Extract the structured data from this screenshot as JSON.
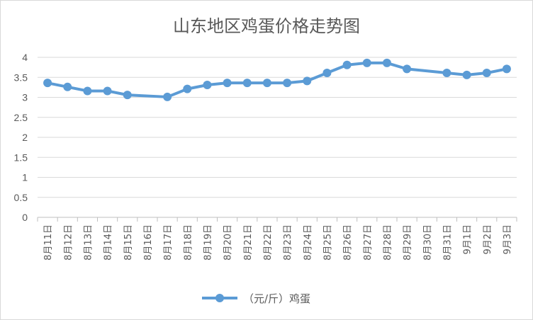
{
  "chart_data": {
    "type": "line",
    "title": "山东地区鸡蛋价格走势图",
    "xlabel": "",
    "ylabel": "",
    "ylim": [
      0,
      4
    ],
    "yticks": [
      "0",
      "0.5",
      "1",
      "1.5",
      "2",
      "2.5",
      "3",
      "3.5",
      "4"
    ],
    "grid": true,
    "legend_position": "bottom",
    "categories": [
      "8月11日",
      "8月12日",
      "8月13日",
      "8月14日",
      "8月15日",
      "8月16日",
      "8月17日",
      "8月18日",
      "8月19日",
      "8月20日",
      "8月21日",
      "8月22日",
      "8月23日",
      "8月24日",
      "8月25日",
      "8月26日",
      "8月27日",
      "8月28日",
      "8月29日",
      "8月30日",
      "8月31日",
      "9月1日",
      "9月2日",
      "9月3日"
    ],
    "series": [
      {
        "name": "（元/斤）鸡蛋",
        "color": "#5b9bd5",
        "values": [
          3.36,
          3.26,
          3.16,
          3.16,
          3.06,
          null,
          3.01,
          3.21,
          3.31,
          3.36,
          3.36,
          3.36,
          3.36,
          3.41,
          3.61,
          3.81,
          3.86,
          3.86,
          3.71,
          null,
          3.61,
          3.56,
          3.61,
          3.71
        ]
      }
    ]
  }
}
